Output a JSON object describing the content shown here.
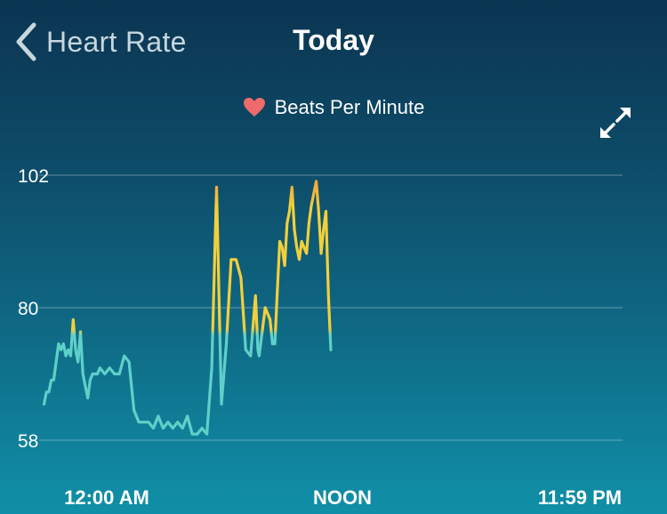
{
  "header": {
    "back_label": "Heart Rate",
    "title": "Today"
  },
  "legend": {
    "label": "Beats Per Minute",
    "icon": "heart-icon",
    "icon_color": "#ef6b6b"
  },
  "expand_icon": "expand-icon",
  "colors": {
    "low": "#5fd0c8",
    "mid": "#f3cf3a",
    "high": "#f39a3a",
    "grid": "rgba(255,255,255,0.35)"
  },
  "chart_data": {
    "type": "line",
    "title": "Beats Per Minute",
    "y_ticks": [
      102,
      80,
      58
    ],
    "ylim": [
      58,
      102
    ],
    "x_ticks": [
      "12:00 AM",
      "NOON",
      "11:59 PM"
    ],
    "x_unit": "hours since 12:00 AM",
    "xlim": [
      0,
      24
    ],
    "grid": true,
    "series": [
      {
        "x": [
          0.2,
          0.3,
          0.4,
          0.5,
          0.6,
          0.7,
          0.8,
          0.9,
          1.0,
          1.1,
          1.2,
          1.3,
          1.4,
          1.5,
          1.6,
          1.7,
          1.8,
          1.9,
          2.0,
          2.1,
          2.2,
          2.3,
          2.4,
          2.5,
          2.7,
          2.9,
          3.1,
          3.3,
          3.5,
          3.7,
          3.9,
          4.0,
          4.1,
          4.2,
          4.3,
          4.5,
          4.7,
          4.9,
          5.1,
          5.3,
          5.5,
          5.7,
          5.9,
          6.1,
          6.3,
          6.5,
          6.7,
          6.9,
          7.1,
          7.3,
          7.5,
          7.7,
          7.9,
          8.1,
          8.3,
          8.5,
          8.7,
          8.9,
          9.0,
          9.05,
          9.3,
          9.5,
          9.6,
          9.7,
          9.8,
          9.9,
          10.0,
          10.1,
          10.2,
          10.3,
          10.4,
          10.5,
          10.6,
          10.7,
          10.8,
          10.9,
          11.0,
          11.1,
          11.2,
          11.3,
          11.4,
          11.5,
          11.6,
          11.7,
          11.8,
          11.9,
          12.0
        ],
        "values": [
          64,
          66,
          66,
          68,
          68,
          71,
          74,
          73,
          74,
          72,
          73,
          72,
          78,
          73,
          71,
          76,
          69,
          67,
          65,
          68,
          69,
          69,
          69,
          70,
          69,
          70,
          69,
          69,
          72,
          71,
          63,
          62,
          61,
          61,
          61,
          61,
          60,
          62,
          60,
          61,
          60,
          61,
          60,
          62,
          59,
          59,
          60,
          59,
          70,
          100,
          64,
          74,
          88,
          88,
          85,
          73,
          72,
          82,
          73,
          72,
          80,
          78,
          74,
          74,
          83,
          91,
          90,
          87,
          94,
          96,
          100,
          93,
          90,
          88,
          91,
          90,
          89,
          94,
          97,
          99,
          101,
          96,
          89,
          93,
          96,
          82,
          73
        ]
      }
    ]
  }
}
